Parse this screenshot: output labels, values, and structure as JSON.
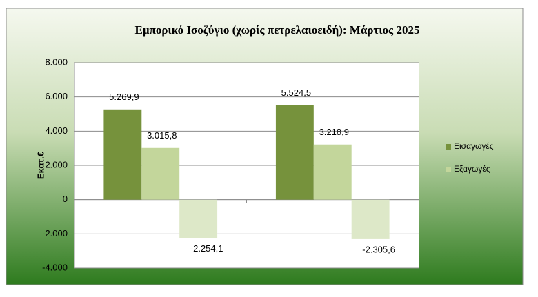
{
  "chart_data": {
    "type": "bar",
    "title": "Εμπορικό Ισοζύγιο (χωρίς πετρελαιοειδή): Μάρτιος 2025",
    "y_label": "Εκατ.€",
    "categories": [
      null,
      null
    ],
    "series": [
      {
        "name": "Εισαγωγές",
        "color": "#76923c",
        "values": [
          5269.9,
          5524.5
        ],
        "value_labels": [
          "5.269,9",
          "5.524,5"
        ]
      },
      {
        "name": "Εξαγωγές",
        "color": "#c3d69b",
        "values": [
          3015.8,
          3218.9
        ],
        "value_labels": [
          "3.015,8",
          "3.218,9"
        ]
      },
      {
        "color": "#dde8c8",
        "values": [
          -2254.1,
          -2305.6
        ],
        "value_labels": [
          "-2.254,1",
          "-2.305,6"
        ]
      }
    ],
    "ylim": [
      -4000,
      8000
    ],
    "yticks": [
      {
        "value": -4000,
        "label": "-4.000"
      },
      {
        "value": -2000,
        "label": "-2.000"
      },
      0,
      {
        "value": 2000,
        "label": "2.000"
      },
      {
        "value": 4000,
        "label": "4.000"
      },
      {
        "value": 6000,
        "label": "6.000"
      },
      {
        "value": 8000,
        "label": "8.000"
      }
    ],
    "grid": true,
    "legend": "right"
  }
}
